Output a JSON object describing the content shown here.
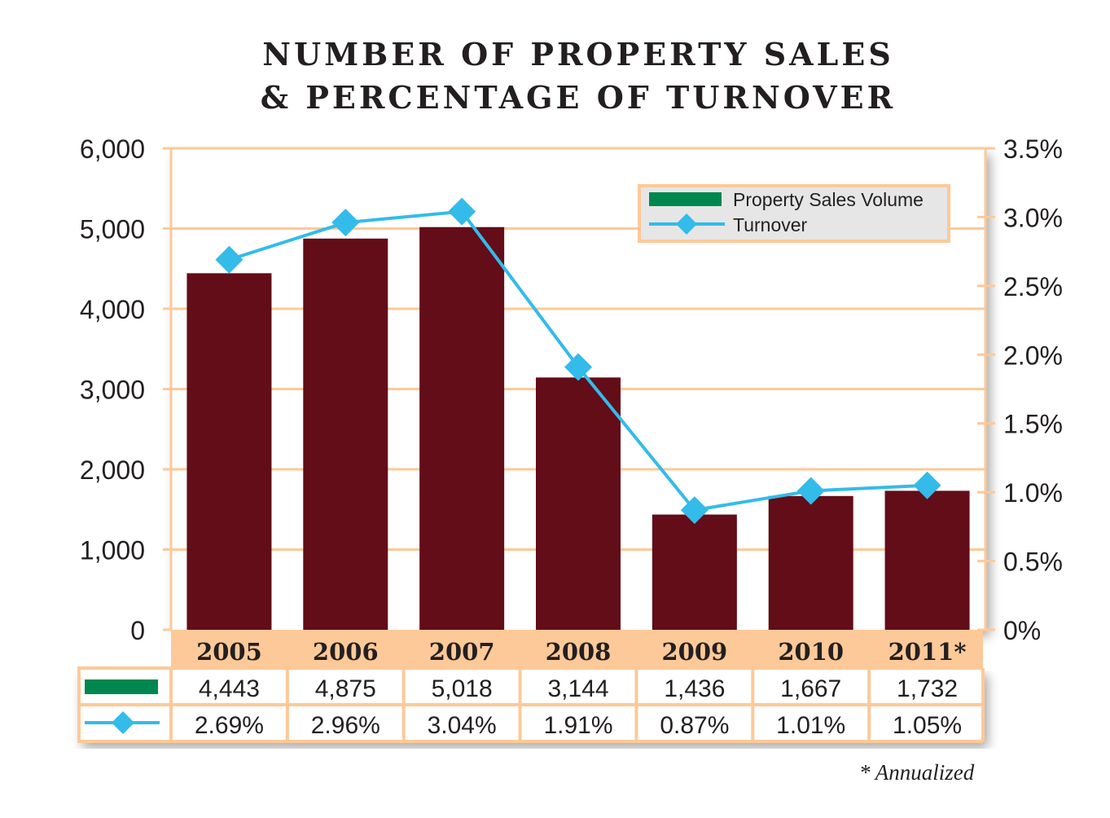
{
  "chart_data": {
    "type": "bar+line",
    "title_line1": "NUMBER OF PROPERTY SALES",
    "title_line2": "& PERCENTAGE OF TURNOVER",
    "categories": [
      "2005",
      "2006",
      "2007",
      "2008",
      "2009",
      "2010",
      "2011*"
    ],
    "series": [
      {
        "name": "Property Sales Volume",
        "type": "bar",
        "axis": "left",
        "color": "#620d18",
        "legend_color": "#00874f",
        "values": [
          4443,
          4875,
          5018,
          3144,
          1436,
          1667,
          1732
        ],
        "labels": [
          "4,443",
          "4,875",
          "5,018",
          "3,144",
          "1,436",
          "1,667",
          "1,732"
        ]
      },
      {
        "name": "Turnover",
        "type": "line",
        "axis": "right",
        "color": "#33bbea",
        "values": [
          2.69,
          2.96,
          3.04,
          1.91,
          0.87,
          1.01,
          1.05
        ],
        "labels": [
          "2.69%",
          "2.96%",
          "3.04%",
          "1.91%",
          "0.87%",
          "1.01%",
          "1.05%"
        ]
      }
    ],
    "left_axis": {
      "ylim": [
        0,
        6000
      ],
      "ticks": [
        "0",
        "1,000",
        "2,000",
        "3,000",
        "4,000",
        "5,000",
        "6,000"
      ]
    },
    "right_axis": {
      "ylim": [
        0,
        3.5
      ],
      "ticks": [
        "0%",
        "0.5%",
        "1.0%",
        "1.5%",
        "2.0%",
        "2.5%",
        "3.0%",
        "3.5%"
      ]
    },
    "grid": true,
    "legend_position": "top-right",
    "grid_color": "#fdc998",
    "footnote": "* Annualized"
  }
}
